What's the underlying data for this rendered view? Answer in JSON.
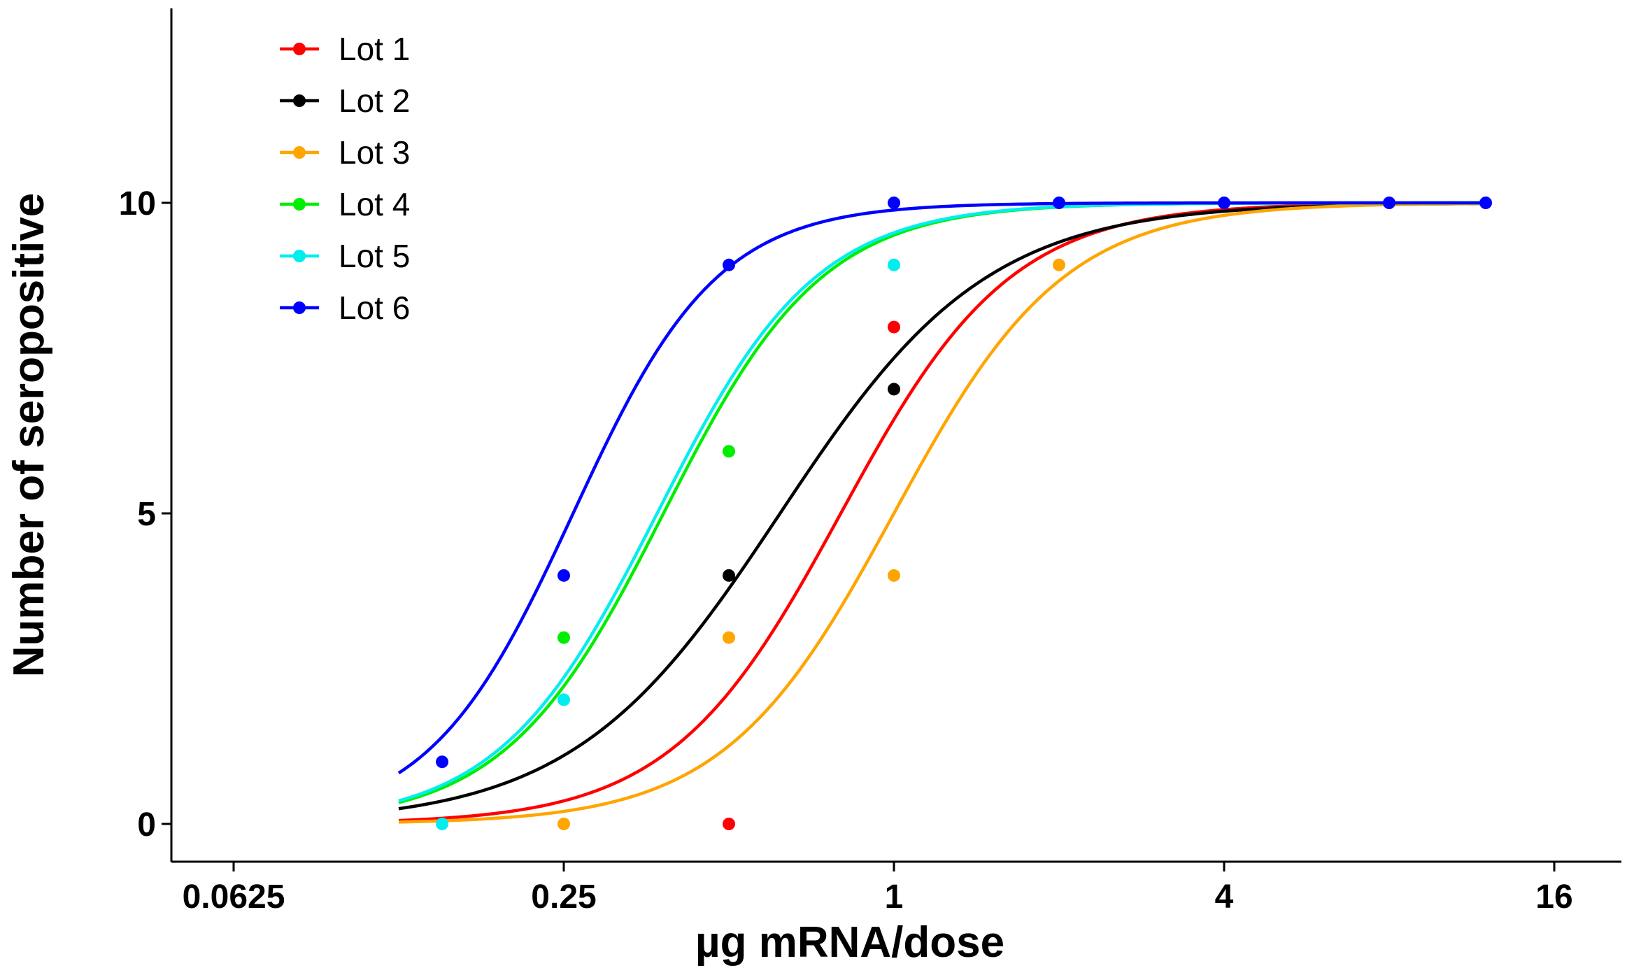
{
  "chart_data": {
    "type": "scatter",
    "title": "",
    "xlabel": "µg mRNA/dose",
    "ylabel": "Number of seropositive",
    "x_scale": "log2",
    "xlim": [
      0.05,
      20
    ],
    "ylim": [
      -0.6,
      13
    ],
    "x_ticks": [
      0.0625,
      0.25,
      1,
      4,
      16
    ],
    "x_tick_labels": [
      "0.0625",
      "0.25",
      "1",
      "4",
      "16"
    ],
    "y_ticks": [
      0,
      5,
      10
    ],
    "y_tick_labels": [
      "0",
      "5",
      "10"
    ],
    "legend_position": "top-left",
    "series": [
      {
        "name": "Lot 1",
        "color": "#ff0000",
        "points": [
          [
            0.5,
            0
          ],
          [
            1,
            8
          ]
        ],
        "curve": {
          "ed50": 0.8,
          "slope": 2.8,
          "max": 10,
          "x_range": [
            0.125,
            12
          ]
        }
      },
      {
        "name": "Lot 2",
        "color": "#000000",
        "points": [
          [
            0.5,
            4
          ],
          [
            1,
            7
          ]
        ],
        "curve": {
          "ed50": 0.62,
          "slope": 2.3,
          "max": 10,
          "x_range": [
            0.125,
            12
          ]
        }
      },
      {
        "name": "Lot 3",
        "color": "#ffa500",
        "points": [
          [
            0.25,
            0
          ],
          [
            0.5,
            3
          ],
          [
            1,
            4
          ],
          [
            2,
            9
          ]
        ],
        "curve": {
          "ed50": 1.0,
          "slope": 2.8,
          "max": 10,
          "x_range": [
            0.125,
            12
          ]
        }
      },
      {
        "name": "Lot 4",
        "color": "#00ee00",
        "points": [
          [
            0.25,
            3
          ],
          [
            0.5,
            6
          ]
        ],
        "curve": {
          "ed50": 0.38,
          "slope": 3.0,
          "max": 10,
          "x_range": [
            0.125,
            12
          ]
        }
      },
      {
        "name": "Lot 5",
        "color": "#00eeee",
        "points": [
          [
            0.15,
            0
          ],
          [
            0.25,
            2
          ],
          [
            1,
            9
          ]
        ],
        "curve": {
          "ed50": 0.37,
          "slope": 3.0,
          "max": 10,
          "x_range": [
            0.125,
            12
          ]
        }
      },
      {
        "name": "Lot 6",
        "color": "#0000ff",
        "points": [
          [
            0.15,
            1
          ],
          [
            0.25,
            4
          ],
          [
            0.5,
            9
          ],
          [
            1,
            10
          ],
          [
            2,
            10
          ],
          [
            4,
            10
          ],
          [
            8,
            10
          ],
          [
            12,
            10
          ]
        ],
        "curve": {
          "ed50": 0.26,
          "slope": 3.3,
          "max": 10,
          "x_range": [
            0.125,
            12
          ]
        }
      }
    ]
  }
}
